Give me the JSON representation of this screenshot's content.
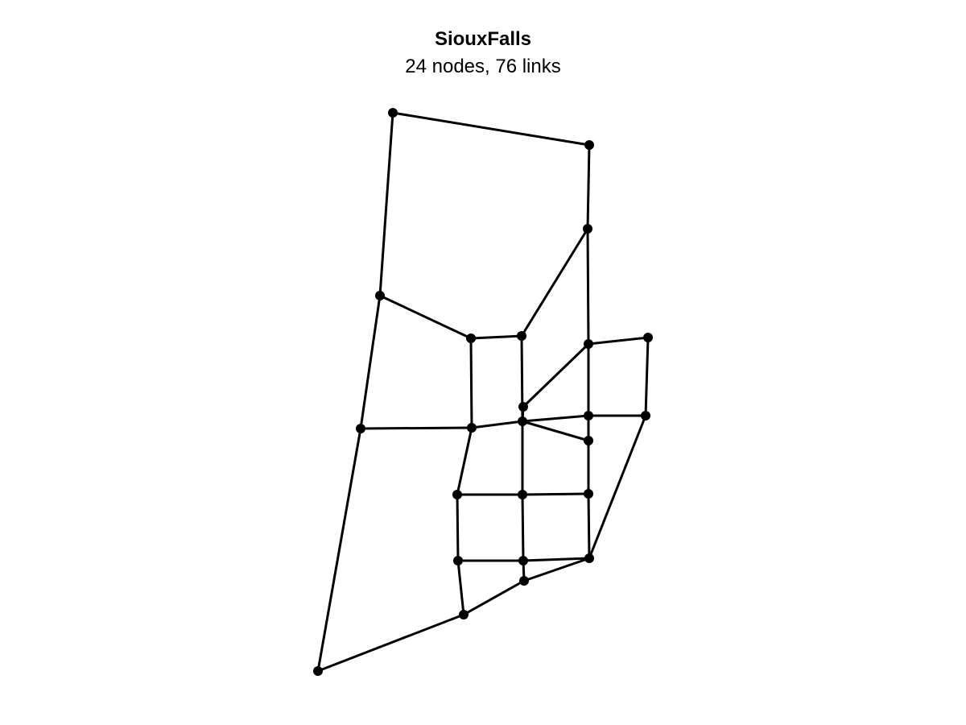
{
  "network": {
    "title": "SiouxFalls",
    "subtitle": "24 nodes, 76 links",
    "node_count": 24,
    "link_count": 76,
    "link_color": "#000000",
    "node_color": "#000000",
    "background_color": "#ffffff"
  }
}
